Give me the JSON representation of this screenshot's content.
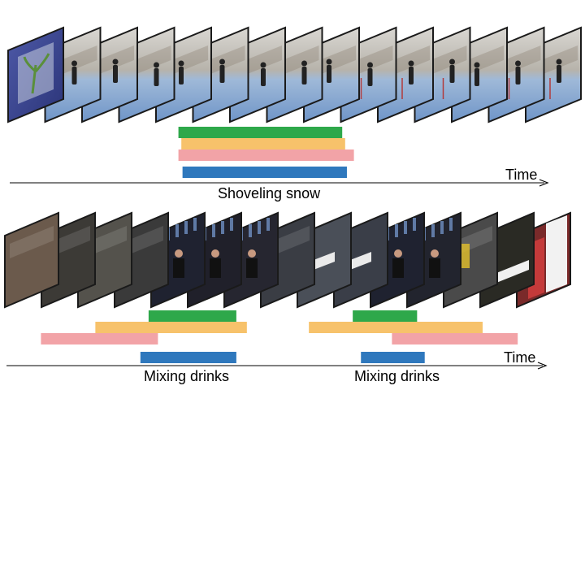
{
  "colors": {
    "green": "#2ea84a",
    "orange": "#f7c26b",
    "pink": "#f2a3a7",
    "blue": "#2f78bd"
  },
  "row1": {
    "time_label": "Time",
    "action_label": "Shoveling snow",
    "thumbnail_subject": "outdoor snow shoveling scene",
    "bars": [
      {
        "color": "green",
        "start": 0.305,
        "end": 0.585
      },
      {
        "color": "orange",
        "start": 0.31,
        "end": 0.59
      },
      {
        "color": "pink",
        "start": 0.305,
        "end": 0.605
      },
      {
        "color": "blue",
        "start": 0.312,
        "end": 0.593
      }
    ]
  },
  "row2": {
    "time_label": "Time",
    "action_labels": [
      "Mixing drinks",
      "Mixing drinks"
    ],
    "thumbnail_subject": "bar / bartender mixing drinks scene",
    "bars": [
      {
        "color": "green",
        "start": 0.254,
        "end": 0.404
      },
      {
        "color": "orange",
        "start": 0.163,
        "end": 0.422
      },
      {
        "color": "pink",
        "start": 0.07,
        "end": 0.27
      },
      {
        "color": "blue",
        "start": 0.24,
        "end": 0.404
      },
      {
        "color": "green",
        "start": 0.603,
        "end": 0.713
      },
      {
        "color": "orange",
        "start": 0.528,
        "end": 0.825
      },
      {
        "color": "pink",
        "start": 0.67,
        "end": 0.885
      },
      {
        "color": "blue",
        "start": 0.617,
        "end": 0.726
      }
    ]
  }
}
